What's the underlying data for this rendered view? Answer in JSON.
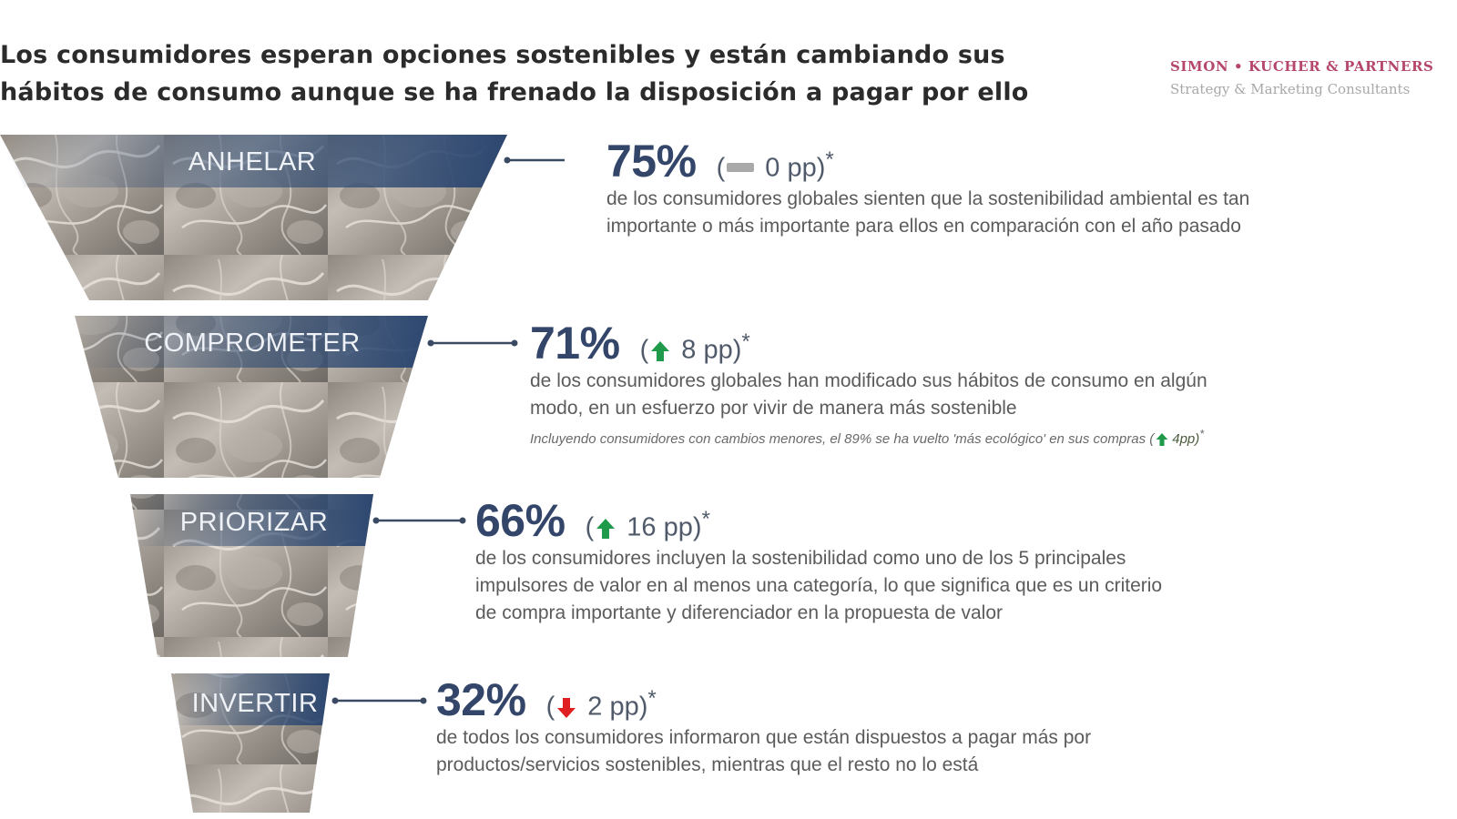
{
  "title": {
    "line1": "Los consumidores esperan opciones sostenibles y están cambiando sus",
    "line2": "hábitos de consumo aunque se ha frenado la disposición a pagar por ello"
  },
  "brand": {
    "name": "SIMON • KUCHER & PARTNERS",
    "tagline": "Strategy & Marketing Consultants"
  },
  "colors": {
    "label_band": "#2f4b73",
    "value_text": "#33466a",
    "up_arrow": "#1f9a4a",
    "down_arrow": "#e02020",
    "flat_bar": "#a9a9a9",
    "brand": "#b5476b"
  },
  "stages": [
    {
      "label": "ANHELAR",
      "value": "75%",
      "change": {
        "open": "(",
        "text": " 0 pp)",
        "mark": "*",
        "direction": "flat",
        "icon": "flat-bar-icon"
      },
      "description": [
        "de los consumidores globales sienten que la sostenibilidad ambiental es tan",
        "importante o más importante para ellos en comparación con el año pasado"
      ]
    },
    {
      "label": "COMPROMETER",
      "value": "71%",
      "change": {
        "open": "(",
        "text": " 8 pp)",
        "mark": "*",
        "direction": "up",
        "icon": "up-arrow-icon"
      },
      "description": [
        "de los consumidores globales han modificado sus hábitos de consumo en algún",
        "modo, en un esfuerzo por vivir de manera más sostenible"
      ],
      "note": {
        "text": "Incluyendo consumidores con  cambios menores, el 89% se ha vuelto 'más ecológico' en sus compras  (",
        "change": "4pp)",
        "mark": "*"
      }
    },
    {
      "label": "PRIORIZAR",
      "value": "66%",
      "change": {
        "open": "(",
        "text": " 16 pp)",
        "mark": "*",
        "direction": "up",
        "icon": "up-arrow-icon"
      },
      "description": [
        "de los consumidores incluyen la sostenibilidad como uno de los 5 principales",
        "impulsores de valor en al menos una categoría, lo que significa que es un criterio",
        "de compra importante y diferenciador en la propuesta de valor"
      ]
    },
    {
      "label": "INVERTIR",
      "value": "32%",
      "change": {
        "open": "(",
        "text": " 2 pp)",
        "mark": "*",
        "direction": "down",
        "icon": "down-arrow-icon"
      },
      "description": [
        "de todos los consumidores informaron que están dispuestos a pagar más por",
        "productos/servicios sostenibles, mientras que el resto no lo está"
      ]
    }
  ]
}
